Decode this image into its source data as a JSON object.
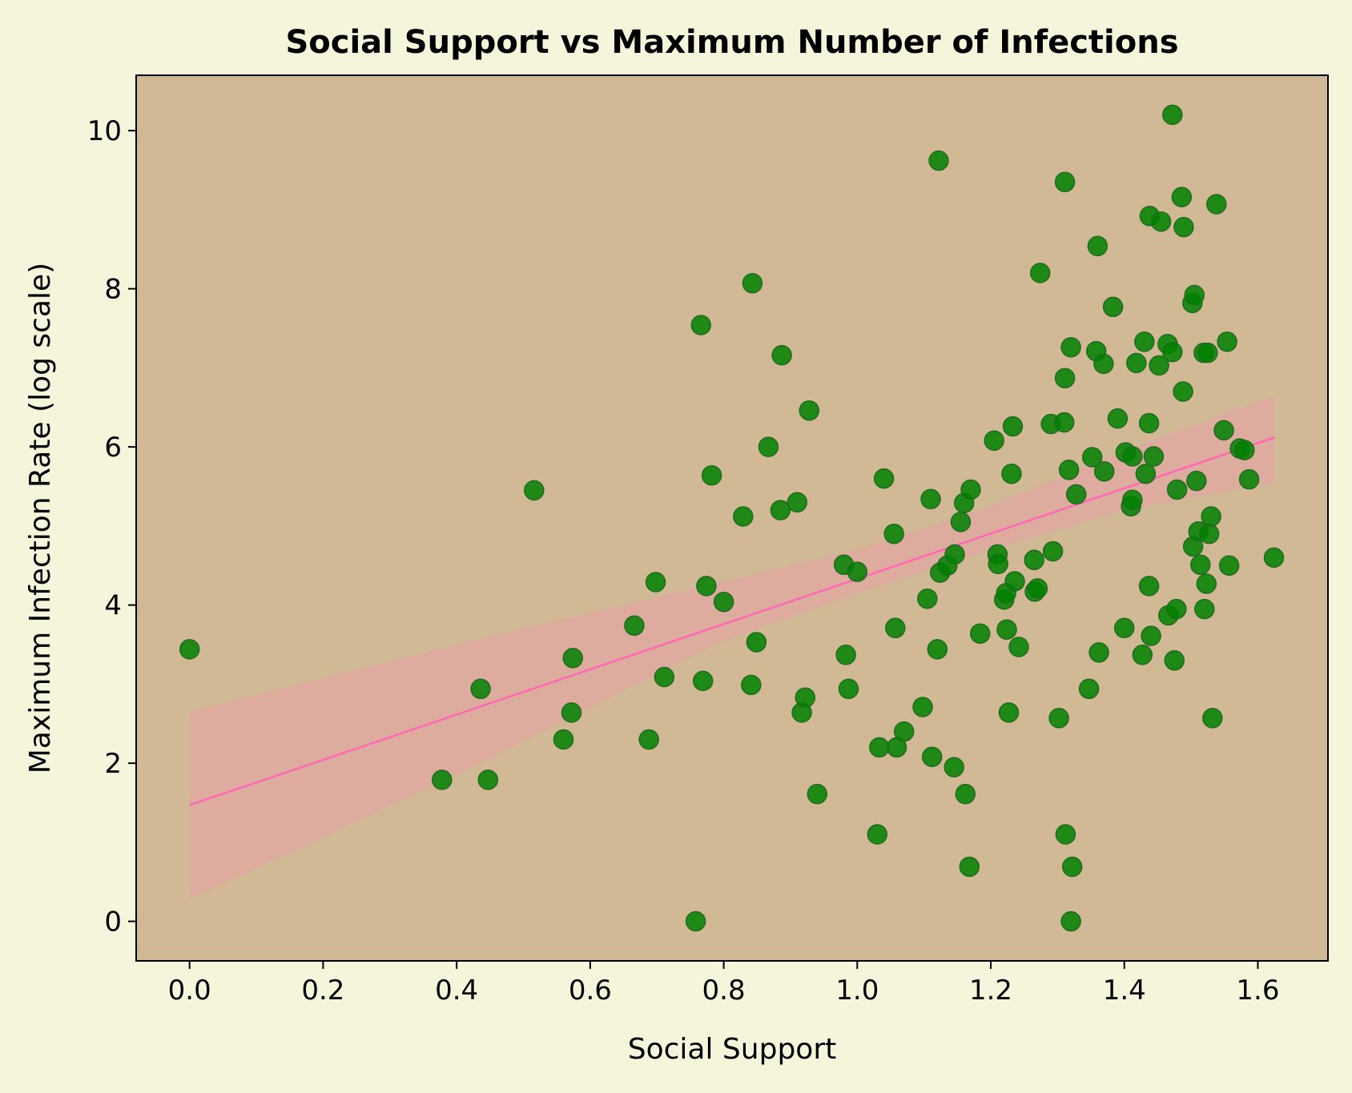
{
  "chart_data": {
    "type": "scatter",
    "title": "Social Support vs Maximum Number of Infections",
    "xlabel": "Social Support",
    "ylabel": "Maximum Infection Rate (log scale)",
    "xlim": [
      -0.08,
      1.705
    ],
    "ylim": [
      -0.5,
      10.7
    ],
    "xticks": [
      0.0,
      0.2,
      0.4,
      0.6,
      0.8,
      1.0,
      1.2,
      1.4,
      1.6
    ],
    "xtick_labels": [
      "0.0",
      "0.2",
      "0.4",
      "0.6",
      "0.8",
      "1.0",
      "1.2",
      "1.4",
      "1.6"
    ],
    "yticks": [
      0,
      2,
      4,
      6,
      8,
      10
    ],
    "ytick_labels": [
      "0",
      "2",
      "4",
      "6",
      "8",
      "10"
    ],
    "grid": false,
    "colors": {
      "page_background": "#f5f5dc",
      "plot_background": "#d2b996",
      "points": "#008000",
      "regression_line": "#ff69b4",
      "confidence_band": "#e8a2a8"
    },
    "regression_line": {
      "x": [
        0.0,
        1.625
      ],
      "y": [
        1.47,
        6.12
      ]
    },
    "confidence_band": {
      "x": [
        0.0,
        0.4,
        0.8,
        1.0,
        1.2,
        1.4,
        1.625
      ],
      "lower": [
        0.28,
        1.85,
        3.55,
        4.15,
        4.7,
        5.2,
        5.55
      ],
      "upper": [
        2.65,
        3.5,
        4.3,
        4.7,
        5.25,
        5.95,
        6.65
      ]
    },
    "points": [
      {
        "x": 0.0,
        "y": 3.44
      },
      {
        "x": 0.378,
        "y": 1.79
      },
      {
        "x": 0.436,
        "y": 2.94
      },
      {
        "x": 0.447,
        "y": 1.79
      },
      {
        "x": 0.516,
        "y": 5.45
      },
      {
        "x": 0.56,
        "y": 2.3
      },
      {
        "x": 0.572,
        "y": 2.64
      },
      {
        "x": 0.574,
        "y": 3.33
      },
      {
        "x": 0.666,
        "y": 3.74
      },
      {
        "x": 0.688,
        "y": 2.3
      },
      {
        "x": 0.698,
        "y": 4.29
      },
      {
        "x": 0.711,
        "y": 3.09
      },
      {
        "x": 0.758,
        "y": 0.0
      },
      {
        "x": 0.766,
        "y": 7.54
      },
      {
        "x": 0.769,
        "y": 3.04
      },
      {
        "x": 0.774,
        "y": 4.24
      },
      {
        "x": 0.782,
        "y": 5.64
      },
      {
        "x": 0.8,
        "y": 4.04
      },
      {
        "x": 0.829,
        "y": 5.12
      },
      {
        "x": 0.841,
        "y": 2.99
      },
      {
        "x": 0.843,
        "y": 8.07
      },
      {
        "x": 0.849,
        "y": 3.53
      },
      {
        "x": 0.867,
        "y": 6.0
      },
      {
        "x": 0.885,
        "y": 5.2
      },
      {
        "x": 0.887,
        "y": 7.16
      },
      {
        "x": 0.91,
        "y": 5.3
      },
      {
        "x": 0.917,
        "y": 2.64
      },
      {
        "x": 0.922,
        "y": 2.83
      },
      {
        "x": 0.928,
        "y": 6.46
      },
      {
        "x": 0.94,
        "y": 1.61
      },
      {
        "x": 0.98,
        "y": 4.51
      },
      {
        "x": 0.983,
        "y": 3.37
      },
      {
        "x": 0.987,
        "y": 2.94
      },
      {
        "x": 1.0,
        "y": 4.42
      },
      {
        "x": 1.03,
        "y": 1.1
      },
      {
        "x": 1.033,
        "y": 2.2
      },
      {
        "x": 1.04,
        "y": 5.6
      },
      {
        "x": 1.055,
        "y": 4.9
      },
      {
        "x": 1.057,
        "y": 3.71
      },
      {
        "x": 1.059,
        "y": 2.2
      },
      {
        "x": 1.07,
        "y": 2.4
      },
      {
        "x": 1.098,
        "y": 2.71
      },
      {
        "x": 1.105,
        "y": 4.08
      },
      {
        "x": 1.11,
        "y": 5.34
      },
      {
        "x": 1.112,
        "y": 2.08
      },
      {
        "x": 1.12,
        "y": 3.44
      },
      {
        "x": 1.122,
        "y": 9.62
      },
      {
        "x": 1.124,
        "y": 4.41
      },
      {
        "x": 1.135,
        "y": 4.5
      },
      {
        "x": 1.145,
        "y": 1.95
      },
      {
        "x": 1.146,
        "y": 4.64
      },
      {
        "x": 1.155,
        "y": 5.05
      },
      {
        "x": 1.16,
        "y": 5.29
      },
      {
        "x": 1.162,
        "y": 1.61
      },
      {
        "x": 1.168,
        "y": 0.69
      },
      {
        "x": 1.17,
        "y": 5.46
      },
      {
        "x": 1.184,
        "y": 3.64
      },
      {
        "x": 1.205,
        "y": 6.08
      },
      {
        "x": 1.21,
        "y": 4.64
      },
      {
        "x": 1.211,
        "y": 4.52
      },
      {
        "x": 1.22,
        "y": 4.07
      },
      {
        "x": 1.223,
        "y": 4.15
      },
      {
        "x": 1.224,
        "y": 3.69
      },
      {
        "x": 1.227,
        "y": 2.64
      },
      {
        "x": 1.231,
        "y": 5.66
      },
      {
        "x": 1.233,
        "y": 6.26
      },
      {
        "x": 1.236,
        "y": 4.3
      },
      {
        "x": 1.242,
        "y": 3.47
      },
      {
        "x": 1.265,
        "y": 4.57
      },
      {
        "x": 1.266,
        "y": 4.17
      },
      {
        "x": 1.27,
        "y": 4.21
      },
      {
        "x": 1.274,
        "y": 8.2
      },
      {
        "x": 1.29,
        "y": 6.29
      },
      {
        "x": 1.293,
        "y": 4.68
      },
      {
        "x": 1.302,
        "y": 2.57
      },
      {
        "x": 1.31,
        "y": 6.31
      },
      {
        "x": 1.311,
        "y": 6.87
      },
      {
        "x": 1.311,
        "y": 9.35
      },
      {
        "x": 1.312,
        "y": 1.1
      },
      {
        "x": 1.317,
        "y": 5.71
      },
      {
        "x": 1.32,
        "y": 0.0
      },
      {
        "x": 1.322,
        "y": 0.69
      },
      {
        "x": 1.32,
        "y": 7.26
      },
      {
        "x": 1.328,
        "y": 5.4
      },
      {
        "x": 1.347,
        "y": 2.94
      },
      {
        "x": 1.352,
        "y": 5.87
      },
      {
        "x": 1.358,
        "y": 7.21
      },
      {
        "x": 1.36,
        "y": 8.54
      },
      {
        "x": 1.362,
        "y": 3.4
      },
      {
        "x": 1.369,
        "y": 7.05
      },
      {
        "x": 1.37,
        "y": 5.69
      },
      {
        "x": 1.383,
        "y": 7.77
      },
      {
        "x": 1.39,
        "y": 6.36
      },
      {
        "x": 1.4,
        "y": 3.71
      },
      {
        "x": 1.402,
        "y": 5.93
      },
      {
        "x": 1.41,
        "y": 5.25
      },
      {
        "x": 1.412,
        "y": 5.33
      },
      {
        "x": 1.412,
        "y": 5.88
      },
      {
        "x": 1.418,
        "y": 7.06
      },
      {
        "x": 1.427,
        "y": 3.37
      },
      {
        "x": 1.43,
        "y": 7.33
      },
      {
        "x": 1.432,
        "y": 5.66
      },
      {
        "x": 1.437,
        "y": 6.3
      },
      {
        "x": 1.437,
        "y": 4.24
      },
      {
        "x": 1.438,
        "y": 8.92
      },
      {
        "x": 1.44,
        "y": 3.61
      },
      {
        "x": 1.444,
        "y": 5.88
      },
      {
        "x": 1.452,
        "y": 7.03
      },
      {
        "x": 1.455,
        "y": 8.85
      },
      {
        "x": 1.465,
        "y": 7.3
      },
      {
        "x": 1.466,
        "y": 3.87
      },
      {
        "x": 1.472,
        "y": 7.2
      },
      {
        "x": 1.472,
        "y": 10.2
      },
      {
        "x": 1.475,
        "y": 3.3
      },
      {
        "x": 1.478,
        "y": 3.95
      },
      {
        "x": 1.479,
        "y": 5.46
      },
      {
        "x": 1.486,
        "y": 9.16
      },
      {
        "x": 1.488,
        "y": 6.7
      },
      {
        "x": 1.489,
        "y": 8.78
      },
      {
        "x": 1.502,
        "y": 7.82
      },
      {
        "x": 1.503,
        "y": 4.74
      },
      {
        "x": 1.505,
        "y": 7.92
      },
      {
        "x": 1.508,
        "y": 5.57
      },
      {
        "x": 1.511,
        "y": 4.93
      },
      {
        "x": 1.514,
        "y": 4.51
      },
      {
        "x": 1.519,
        "y": 7.19
      },
      {
        "x": 1.52,
        "y": 3.95
      },
      {
        "x": 1.523,
        "y": 4.27
      },
      {
        "x": 1.525,
        "y": 7.19
      },
      {
        "x": 1.527,
        "y": 4.9
      },
      {
        "x": 1.53,
        "y": 5.12
      },
      {
        "x": 1.532,
        "y": 2.57
      },
      {
        "x": 1.538,
        "y": 9.07
      },
      {
        "x": 1.549,
        "y": 6.21
      },
      {
        "x": 1.554,
        "y": 7.33
      },
      {
        "x": 1.557,
        "y": 4.5
      },
      {
        "x": 1.573,
        "y": 5.98
      },
      {
        "x": 1.58,
        "y": 5.96
      },
      {
        "x": 1.587,
        "y": 5.59
      },
      {
        "x": 1.624,
        "y": 4.6
      }
    ]
  }
}
